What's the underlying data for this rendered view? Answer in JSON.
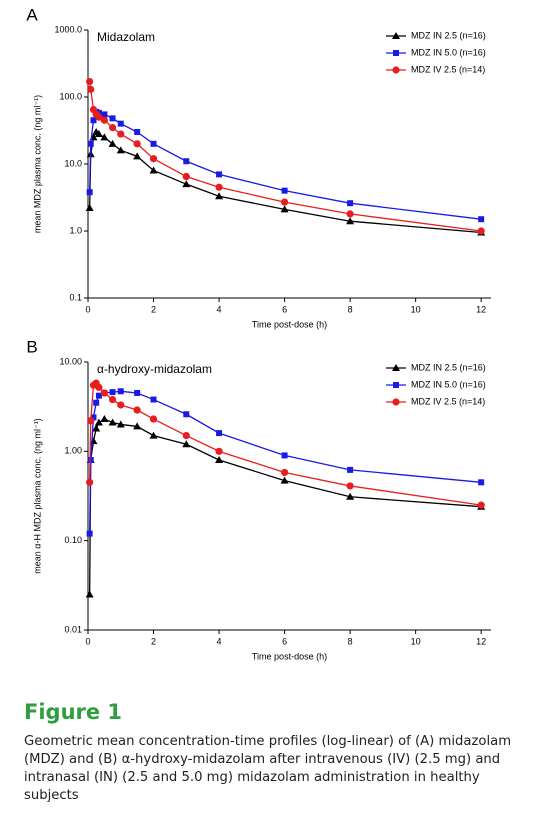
{
  "chart_data": [
    {
      "type": "line",
      "panel": "A",
      "title": "Midazolam",
      "xlabel": "Time post-dose (h)",
      "ylabel": "mean MDZ plasma conc. (ng ml⁻¹)",
      "log_y": true,
      "legend": "upper right",
      "x": [
        0.05,
        0.083,
        0.167,
        0.25,
        0.333,
        0.5,
        0.75,
        1,
        1.5,
        2,
        3,
        4,
        6,
        8,
        12
      ],
      "xlim": [
        0,
        12.3
      ],
      "xticks": [
        0,
        2,
        4,
        6,
        8,
        10,
        12
      ],
      "ylim": [
        0.1,
        1000
      ],
      "yticks": [
        {
          "value": 1000,
          "label": "1000.0"
        },
        {
          "value": 100,
          "label": "100.0"
        },
        {
          "value": 10,
          "label": "10.0"
        },
        {
          "value": 1,
          "label": "1.0"
        },
        0.1
      ],
      "series": [
        {
          "name": "MDZ IN 2.5 (n=16)",
          "color": "#000000",
          "marker": "triangle",
          "values": [
            2.2,
            14,
            25,
            30,
            28,
            25,
            20,
            16,
            13,
            8,
            5,
            3.3,
            2.1,
            1.4,
            0.95
          ]
        },
        {
          "name": "MDZ IN 5.0 (n=16)",
          "color": "#1a1ae6",
          "marker": "square",
          "values": [
            3.8,
            20,
            45,
            60,
            58,
            55,
            48,
            40,
            30,
            20,
            11,
            7,
            4,
            2.6,
            1.5
          ]
        },
        {
          "name": "MDZ IV 2.5 (n=14)",
          "color": "#e61e1e",
          "marker": "circle",
          "values": [
            170,
            130,
            65,
            55,
            50,
            45,
            35,
            28,
            20,
            12,
            6.5,
            4.5,
            2.7,
            1.8,
            1.0
          ]
        }
      ]
    },
    {
      "type": "line",
      "panel": "B",
      "title": "α-hydroxy-midazolam",
      "xlabel": "Time post-dose (h)",
      "ylabel": "mean α-H MDZ plasma conc. (ng ml⁻¹)",
      "log_y": true,
      "legend": "upper right",
      "x": [
        0.05,
        0.083,
        0.167,
        0.25,
        0.333,
        0.5,
        0.75,
        1,
        1.5,
        2,
        3,
        4,
        6,
        8,
        12
      ],
      "xlim": [
        0,
        12.3
      ],
      "xticks": [
        0,
        2,
        4,
        6,
        8,
        10,
        12
      ],
      "ylim": [
        0.01,
        10
      ],
      "yticks": [
        {
          "value": 10,
          "label": "10.00"
        },
        {
          "value": 1,
          "label": "1.00"
        },
        {
          "value": 0.1,
          "label": "0.10"
        },
        {
          "value": 0.01,
          "label": "0.01"
        }
      ],
      "series": [
        {
          "name": "MDZ IN 2.5 (n=16)",
          "color": "#000000",
          "marker": "triangle",
          "values": [
            0.025,
            0.8,
            1.3,
            1.8,
            2.1,
            2.3,
            2.1,
            2.0,
            1.9,
            1.5,
            1.2,
            0.8,
            0.47,
            0.31,
            0.24
          ]
        },
        {
          "name": "MDZ IN 5.0 (n=16)",
          "color": "#1a1ae6",
          "marker": "square",
          "values": [
            0.12,
            0.8,
            2.4,
            3.5,
            4.2,
            4.5,
            4.6,
            4.7,
            4.5,
            3.8,
            2.6,
            1.6,
            0.9,
            0.62,
            0.45
          ]
        },
        {
          "name": "MDZ IV 2.5 (n=14)",
          "color": "#e61e1e",
          "marker": "circle",
          "values": [
            0.45,
            2.2,
            5.5,
            5.8,
            5.2,
            4.5,
            3.8,
            3.3,
            2.9,
            2.3,
            1.5,
            1.0,
            0.58,
            0.41,
            0.25
          ]
        }
      ]
    }
  ],
  "figure": {
    "label": "Figure 1",
    "caption": "Geometric mean concentration-time profiles (log-linear) of (A) midazolam (MDZ) and (B) α-hydroxy-midazolam after intravenous (IV) (2.5 mg) and intranasal (IN) (2.5 and 5.0 mg) midazolam administration in healthy subjects"
  }
}
